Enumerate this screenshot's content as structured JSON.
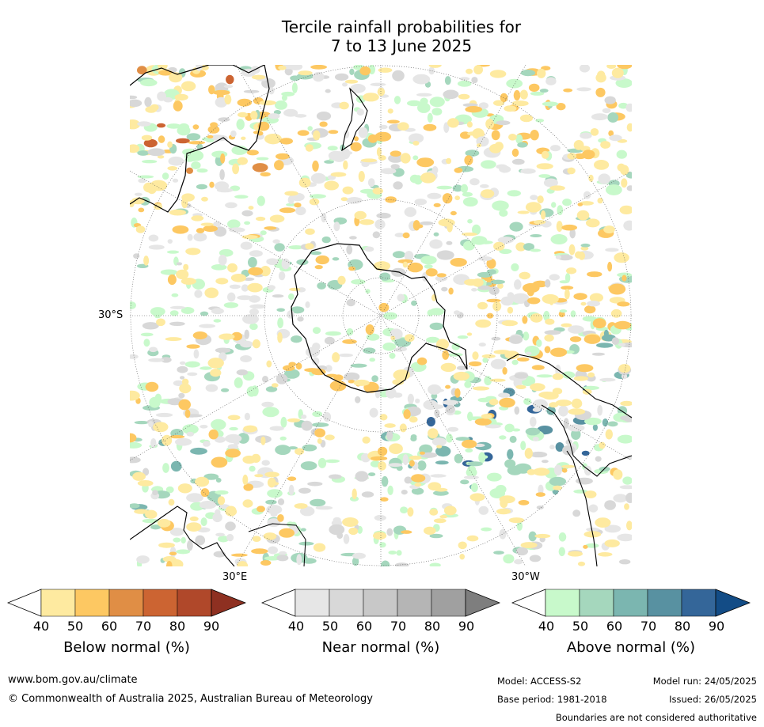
{
  "title_line1": "Tercile rainfall probabilities for",
  "title_line2": "7 to 13 June 2025",
  "map_labels": {
    "lat_30s": "30°S",
    "lon_30e": "30°E",
    "lon_30w": "30°W"
  },
  "legends": [
    {
      "label": "Below normal (%)",
      "ticks": [
        "40",
        "50",
        "60",
        "70",
        "80",
        "90"
      ],
      "colors": [
        "#ffffff",
        "#feeaa0",
        "#fdc862",
        "#e08e45",
        "#cc6432",
        "#b0482a",
        "#8e3021"
      ]
    },
    {
      "label": "Near normal (%)",
      "ticks": [
        "40",
        "50",
        "60",
        "70",
        "80",
        "90"
      ],
      "colors": [
        "#ffffff",
        "#e6e6e6",
        "#d8d8d8",
        "#c8c8c8",
        "#b5b5b5",
        "#a0a0a0",
        "#7e7e7e"
      ]
    },
    {
      "label": "Above normal (%)",
      "ticks": [
        "40",
        "50",
        "60",
        "70",
        "80",
        "90"
      ],
      "colors": [
        "#ffffff",
        "#c8f9cb",
        "#a5d7bd",
        "#7bb6b0",
        "#5891a1",
        "#346699",
        "#134c86"
      ]
    }
  ],
  "footer": {
    "url": "www.bom.gov.au/climate",
    "copyright": "© Commonwealth of Australia 2025, Australian Bureau of Meteorology",
    "model": "Model: ACCESS-S2",
    "model_run": "Model run: 24/05/2025",
    "base_period": "Base period: 1981-2018",
    "issued": "Issued: 26/05/2025",
    "disclaimer": "Boundaries are not considered authoritative"
  }
}
